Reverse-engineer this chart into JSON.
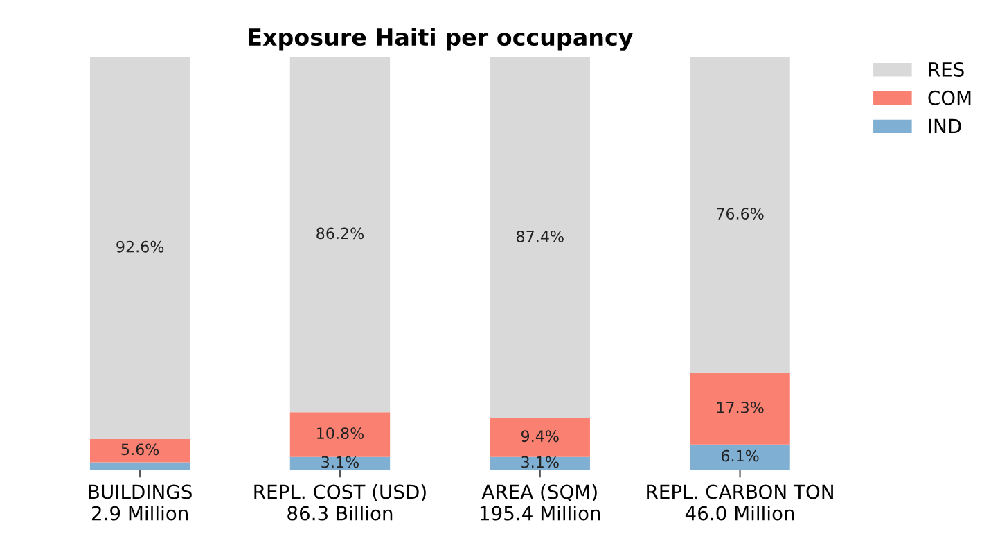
{
  "chart_data": {
    "type": "bar",
    "title": "Exposure Haiti per occupancy",
    "stacked": true,
    "categories": [
      "BUILDINGS\n2.9 Million",
      "REPL. COST (USD)\n86.3 Billion",
      "AREA (SQM)\n195.4 Million",
      "REPL. CARBON TON\n46.0 Million"
    ],
    "series": [
      {
        "name": "IND",
        "color": "#7fb0d3",
        "values": [
          1.8,
          3.1,
          3.1,
          6.1
        ],
        "value_labels": [
          null,
          "3.1%",
          "3.1%",
          "6.1%"
        ]
      },
      {
        "name": "COM",
        "color": "#fa8072",
        "values": [
          5.6,
          10.8,
          9.4,
          17.3
        ],
        "value_labels": [
          "5.6%",
          "10.8%",
          "9.4%",
          "17.3%"
        ]
      },
      {
        "name": "RES",
        "color": "#d9d9d9",
        "values": [
          92.6,
          86.2,
          87.4,
          76.6
        ],
        "value_labels": [
          "92.6%",
          "86.2%",
          "87.4%",
          "76.6%"
        ]
      }
    ],
    "ylim": [
      0,
      100
    ],
    "tick_labels": "x",
    "legend": "top right",
    "grid": false
  }
}
